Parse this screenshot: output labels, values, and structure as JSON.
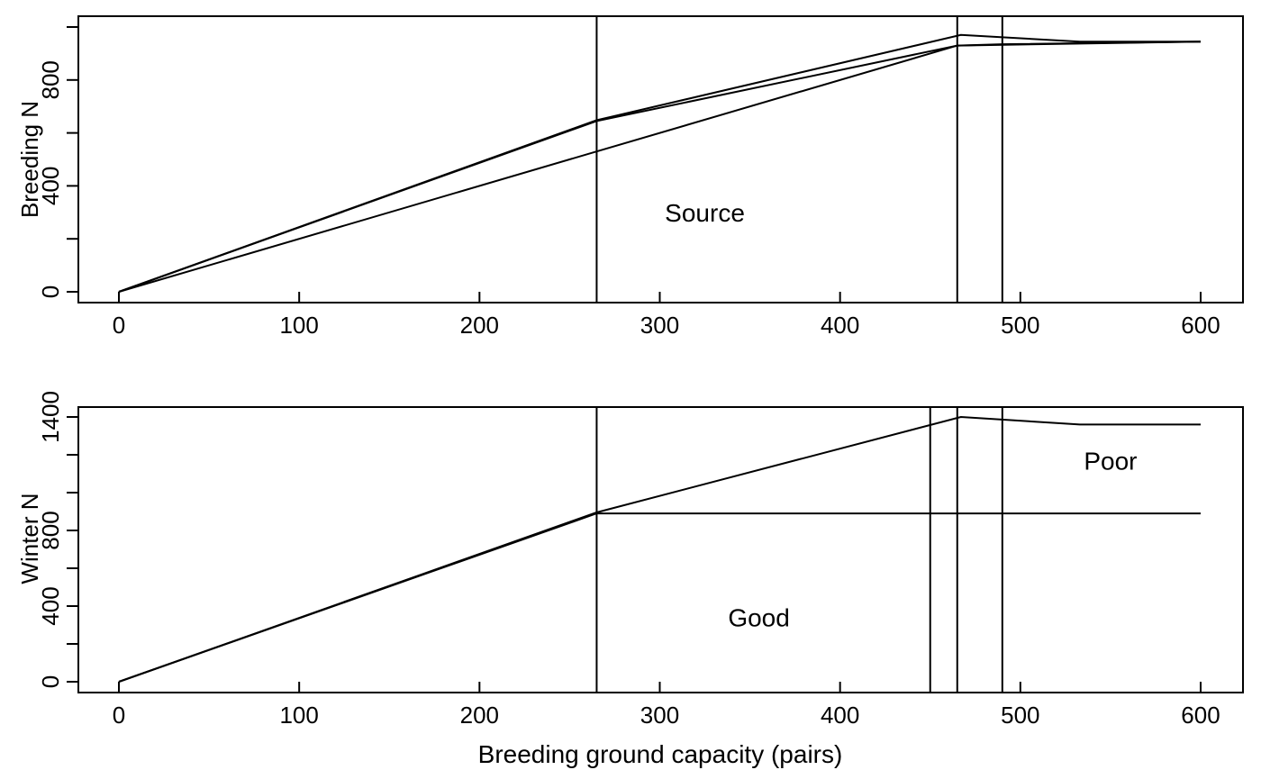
{
  "chart_data": [
    {
      "type": "line",
      "ylabel": "Breeding N",
      "xlabel": "",
      "xlim": [
        0,
        600
      ],
      "ylim": [
        0,
        1000
      ],
      "xticks": [
        0,
        100,
        200,
        300,
        400,
        500,
        600
      ],
      "yticks": [
        0,
        200,
        400,
        600,
        800,
        1000
      ],
      "yticklabels": [
        "0",
        "",
        "400",
        "",
        "800",
        ""
      ],
      "series": [
        {
          "x": [
            0,
            265,
            467,
            533,
            600
          ],
          "y": [
            0,
            648,
            970,
            945,
            945
          ]
        },
        {
          "x": [
            0,
            265,
            465,
            600
          ],
          "y": [
            0,
            645,
            930,
            945
          ]
        },
        {
          "x": [
            0,
            265,
            465,
            490,
            600
          ],
          "y": [
            0,
            530,
            930,
            935,
            945
          ]
        }
      ],
      "vlines": [
        265,
        465,
        490
      ],
      "annotations": [
        {
          "text": "Source",
          "x": 325,
          "y": 300
        }
      ]
    },
    {
      "type": "line",
      "ylabel": "Winter N",
      "xlabel": "Breeding ground capacity (pairs)",
      "xlim": [
        0,
        600
      ],
      "ylim": [
        0,
        1400
      ],
      "xticks": [
        0,
        100,
        200,
        300,
        400,
        500,
        600
      ],
      "yticks": [
        0,
        200,
        400,
        600,
        800,
        1000,
        1200,
        1400
      ],
      "yticklabels": [
        "0",
        "",
        "400",
        "",
        "800",
        "",
        "",
        "1400"
      ],
      "series": [
        {
          "x": [
            0,
            265,
            467,
            533,
            600
          ],
          "y": [
            0,
            895,
            1400,
            1360,
            1360
          ]
        },
        {
          "x": [
            0,
            265,
            600
          ],
          "y": [
            0,
            890,
            890
          ]
        }
      ],
      "vlines": [
        265,
        450,
        465,
        490
      ],
      "annotations": [
        {
          "text": "Good",
          "x": 355,
          "y": 340
        },
        {
          "text": "Poor",
          "x": 550,
          "y": 1170
        }
      ]
    }
  ]
}
